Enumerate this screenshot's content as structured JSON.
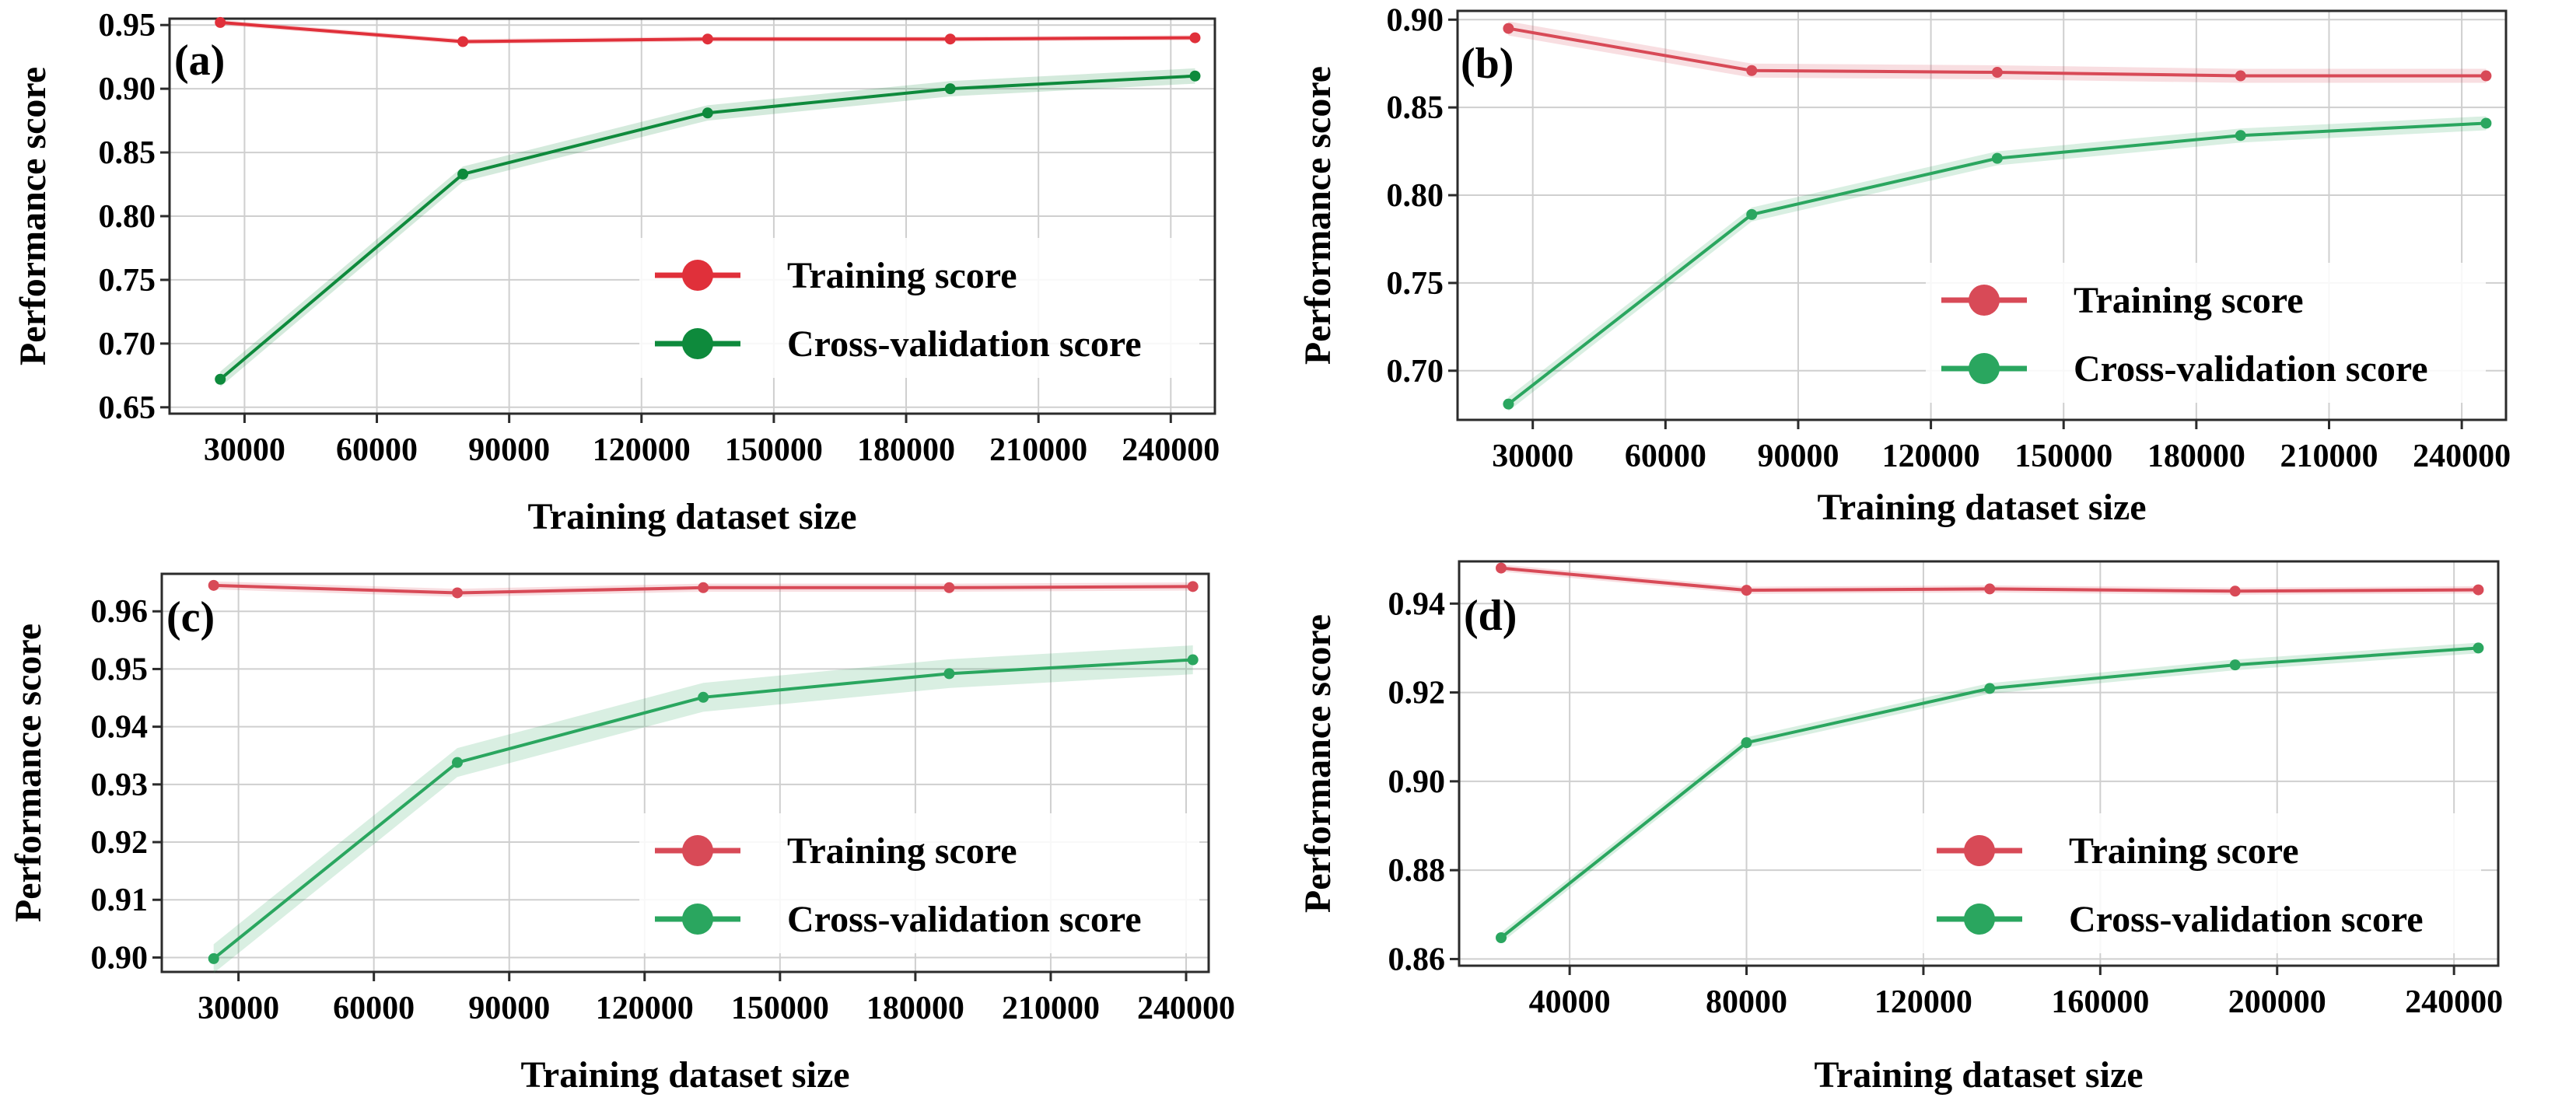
{
  "chart_data": [
    {
      "type": "line",
      "panel_label": "(a)",
      "title": "",
      "xlabel": "Training dataset size",
      "ylabel": "Performance score",
      "xlim": [
        13000,
        250000
      ],
      "ylim": [
        0.645,
        0.955
      ],
      "xticks": [
        30000,
        60000,
        90000,
        120000,
        150000,
        180000,
        210000,
        240000
      ],
      "yticks": [
        0.65,
        0.7,
        0.75,
        0.8,
        0.85,
        0.9,
        0.95
      ],
      "ytick_decimals": 2,
      "grid": true,
      "legend_position": "bottom-right",
      "x": [
        24500,
        79500,
        135000,
        190000,
        245500
      ],
      "series": [
        {
          "name": "Training score",
          "color": "#e0303a",
          "values": [
            0.952,
            0.937,
            0.939,
            0.939,
            0.94
          ],
          "band": 0.002
        },
        {
          "name": "Cross-validation score",
          "color": "#0e8a3c",
          "values": [
            0.672,
            0.833,
            0.881,
            0.9,
            0.91
          ],
          "band": 0.006
        }
      ]
    },
    {
      "type": "line",
      "panel_label": "(b)",
      "title": "",
      "xlabel": "Training dataset size",
      "ylabel": "Performance score",
      "xlim": [
        13000,
        250000
      ],
      "ylim": [
        0.672,
        0.905
      ],
      "xticks": [
        30000,
        60000,
        90000,
        120000,
        150000,
        180000,
        210000,
        240000
      ],
      "yticks": [
        0.7,
        0.75,
        0.8,
        0.85,
        0.9
      ],
      "ytick_decimals": 2,
      "grid": true,
      "legend_position": "bottom-right",
      "x": [
        24500,
        79500,
        135000,
        190000,
        245500
      ],
      "series": [
        {
          "name": "Training score",
          "color": "#d84a57",
          "values": [
            0.895,
            0.871,
            0.87,
            0.868,
            0.868
          ],
          "band": 0.004
        },
        {
          "name": "Cross-validation score",
          "color": "#2aa65f",
          "values": [
            0.681,
            0.789,
            0.821,
            0.834,
            0.841
          ],
          "band": 0.004
        }
      ]
    },
    {
      "type": "line",
      "panel_label": "(c)",
      "title": "",
      "xlabel": "Training dataset size",
      "ylabel": "Performance score",
      "xlim": [
        13000,
        245000
      ],
      "ylim": [
        0.8975,
        0.9665
      ],
      "xticks": [
        30000,
        60000,
        90000,
        120000,
        150000,
        180000,
        210000,
        240000
      ],
      "yticks": [
        0.9,
        0.91,
        0.92,
        0.93,
        0.94,
        0.95,
        0.96
      ],
      "ytick_decimals": 2,
      "grid": true,
      "legend_position": "bottom-right",
      "x": [
        24500,
        78500,
        133000,
        187500,
        241500
      ],
      "series": [
        {
          "name": "Training score",
          "color": "#d84a57",
          "values": [
            0.9645,
            0.9632,
            0.9641,
            0.9641,
            0.9643
          ],
          "band": 0.0007
        },
        {
          "name": "Cross-validation score",
          "color": "#2aa65f",
          "values": [
            0.8998,
            0.9338,
            0.9451,
            0.9492,
            0.9516
          ],
          "band": 0.0025
        }
      ]
    },
    {
      "type": "line",
      "panel_label": "(d)",
      "title": "",
      "xlabel": "Training dataset size",
      "ylabel": "Performance score",
      "xlim": [
        15000,
        250000
      ],
      "ylim": [
        0.8585,
        0.9495
      ],
      "xticks": [
        40000,
        80000,
        120000,
        160000,
        200000,
        240000
      ],
      "yticks": [
        0.86,
        0.88,
        0.9,
        0.92,
        0.94
      ],
      "ytick_decimals": 2,
      "grid": true,
      "legend_position": "bottom-right",
      "x": [
        24500,
        80000,
        135000,
        190500,
        245500
      ],
      "series": [
        {
          "name": "Training score",
          "color": "#d84a57",
          "values": [
            0.948,
            0.943,
            0.9433,
            0.9428,
            0.9431
          ],
          "band": 0.0008
        },
        {
          "name": "Cross-validation score",
          "color": "#2aa65f",
          "values": [
            0.8648,
            0.9087,
            0.9209,
            0.9262,
            0.93
          ],
          "band": 0.0012
        }
      ]
    }
  ]
}
